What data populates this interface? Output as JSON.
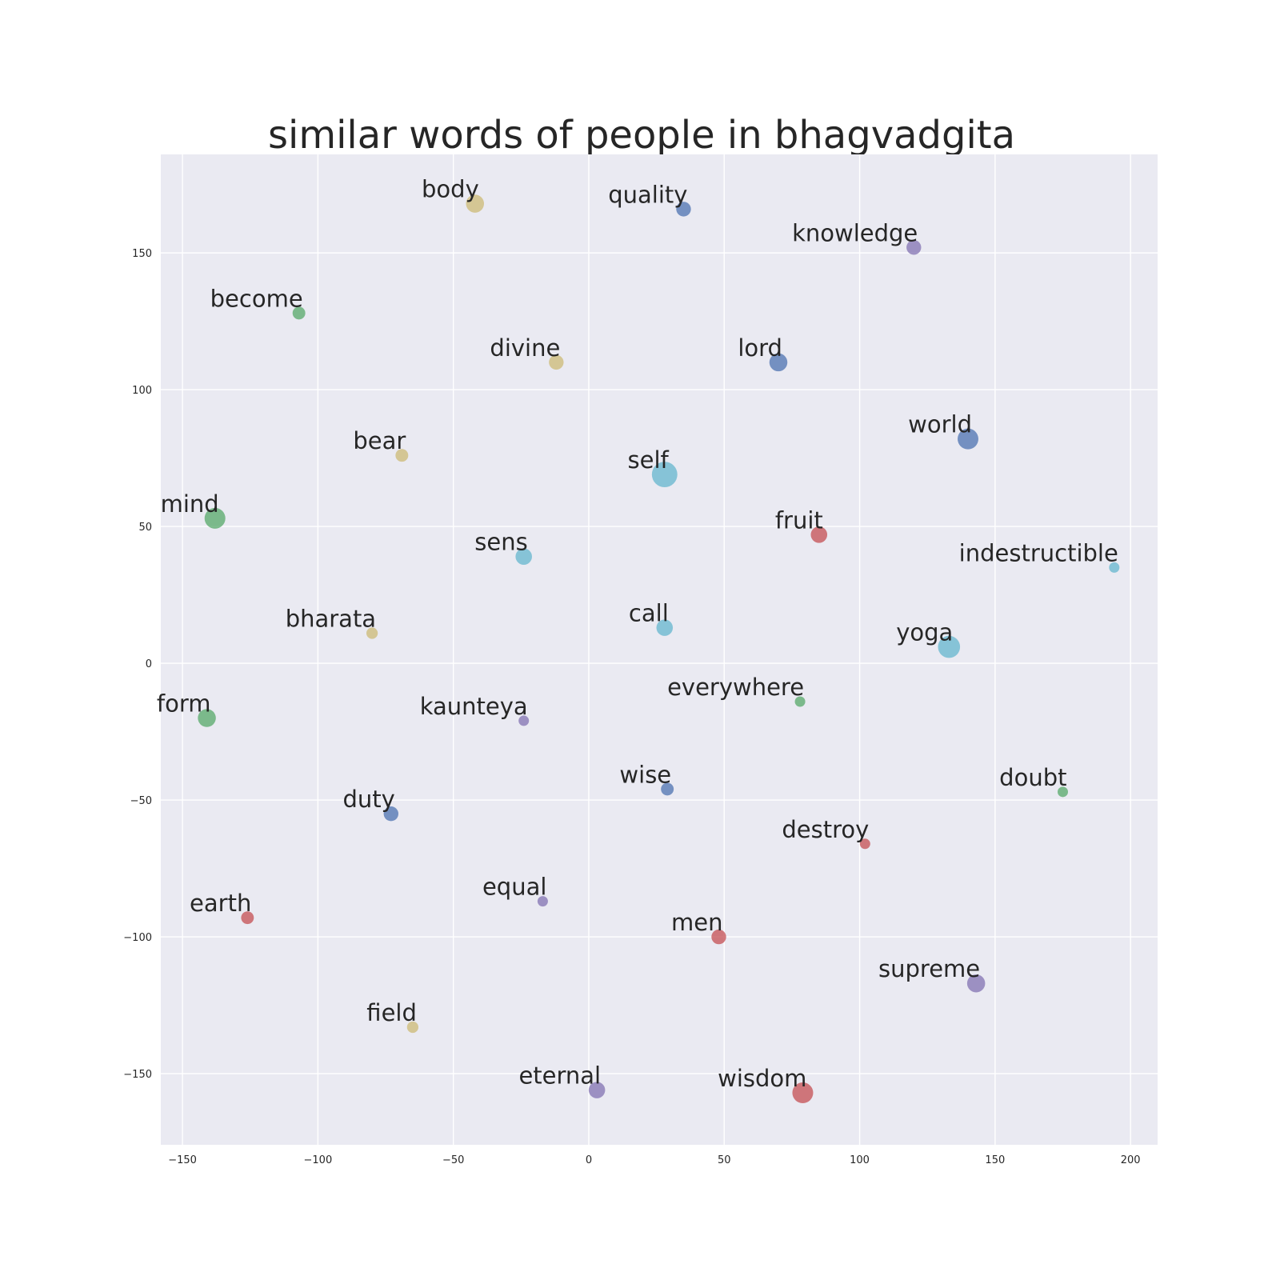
{
  "chart_data": {
    "type": "scatter",
    "title": "similar words of people in bhagvadgita",
    "xlabel": "",
    "ylabel": "",
    "xlim": [
      -158,
      210
    ],
    "ylim": [
      -176,
      186
    ],
    "x_ticks": [
      -150,
      -100,
      -50,
      0,
      50,
      100,
      150,
      200
    ],
    "y_ticks": [
      -150,
      -100,
      -50,
      0,
      50,
      100,
      150
    ],
    "x_tick_labels": [
      "−150",
      "−100",
      "−50",
      "0",
      "50",
      "100",
      "150",
      "200"
    ],
    "y_tick_labels": [
      "−150",
      "−100",
      "−50",
      "0",
      "50",
      "100",
      "150"
    ],
    "grid": true,
    "points": [
      {
        "label": "body",
        "x": -42,
        "y": 168,
        "size": 3,
        "color": "#ccb974"
      },
      {
        "label": "quality",
        "x": 35,
        "y": 166,
        "size": 2,
        "color": "#4c72b0"
      },
      {
        "label": "knowledge",
        "x": 120,
        "y": 152,
        "size": 2,
        "color": "#8172b2"
      },
      {
        "label": "become",
        "x": -107,
        "y": 128,
        "size": 1.5,
        "color": "#55a868"
      },
      {
        "label": "divine",
        "x": -12,
        "y": 110,
        "size": 2,
        "color": "#ccb974"
      },
      {
        "label": "lord",
        "x": 70,
        "y": 110,
        "size": 3,
        "color": "#4c72b0"
      },
      {
        "label": "world",
        "x": 140,
        "y": 82,
        "size": 4,
        "color": "#4c72b0"
      },
      {
        "label": "bear",
        "x": -69,
        "y": 76,
        "size": 1.5,
        "color": "#ccb974"
      },
      {
        "label": "self",
        "x": 28,
        "y": 69,
        "size": 6,
        "color": "#64b5cd"
      },
      {
        "label": "mind",
        "x": -138,
        "y": 53,
        "size": 4,
        "color": "#55a868"
      },
      {
        "label": "fruit",
        "x": 85,
        "y": 47,
        "size": 2.5,
        "color": "#c44e52"
      },
      {
        "label": "sens",
        "x": -24,
        "y": 39,
        "size": 2.5,
        "color": "#64b5cd"
      },
      {
        "label": "indestructible",
        "x": 194,
        "y": 35,
        "size": 1,
        "color": "#64b5cd"
      },
      {
        "label": "call",
        "x": 28,
        "y": 13,
        "size": 2.5,
        "color": "#64b5cd"
      },
      {
        "label": "bharata",
        "x": -80,
        "y": 11,
        "size": 1.2,
        "color": "#ccb974"
      },
      {
        "label": "yoga",
        "x": 133,
        "y": 6,
        "size": 4.5,
        "color": "#64b5cd"
      },
      {
        "label": "everywhere",
        "x": 78,
        "y": -14,
        "size": 1,
        "color": "#55a868"
      },
      {
        "label": "form",
        "x": -141,
        "y": -20,
        "size": 3,
        "color": "#55a868"
      },
      {
        "label": "kaunteya",
        "x": -24,
        "y": -21,
        "size": 1,
        "color": "#8172b2"
      },
      {
        "label": "wise",
        "x": 29,
        "y": -46,
        "size": 1.5,
        "color": "#4c72b0"
      },
      {
        "label": "doubt",
        "x": 175,
        "y": -47,
        "size": 1,
        "color": "#55a868"
      },
      {
        "label": "duty",
        "x": -73,
        "y": -55,
        "size": 2,
        "color": "#4c72b0"
      },
      {
        "label": "destroy",
        "x": 102,
        "y": -66,
        "size": 1,
        "color": "#c44e52"
      },
      {
        "label": "equal",
        "x": -17,
        "y": -87,
        "size": 1,
        "color": "#8172b2"
      },
      {
        "label": "earth",
        "x": -126,
        "y": -93,
        "size": 1.5,
        "color": "#c44e52"
      },
      {
        "label": "men",
        "x": 48,
        "y": -100,
        "size": 2,
        "color": "#c44e52"
      },
      {
        "label": "supreme",
        "x": 143,
        "y": -117,
        "size": 3,
        "color": "#8172b2"
      },
      {
        "label": "field",
        "x": -65,
        "y": -133,
        "size": 1.2,
        "color": "#ccb974"
      },
      {
        "label": "eternal",
        "x": 3,
        "y": -156,
        "size": 2.5,
        "color": "#8172b2"
      },
      {
        "label": "wisdom",
        "x": 79,
        "y": -157,
        "size": 4,
        "color": "#c44e52"
      }
    ]
  }
}
